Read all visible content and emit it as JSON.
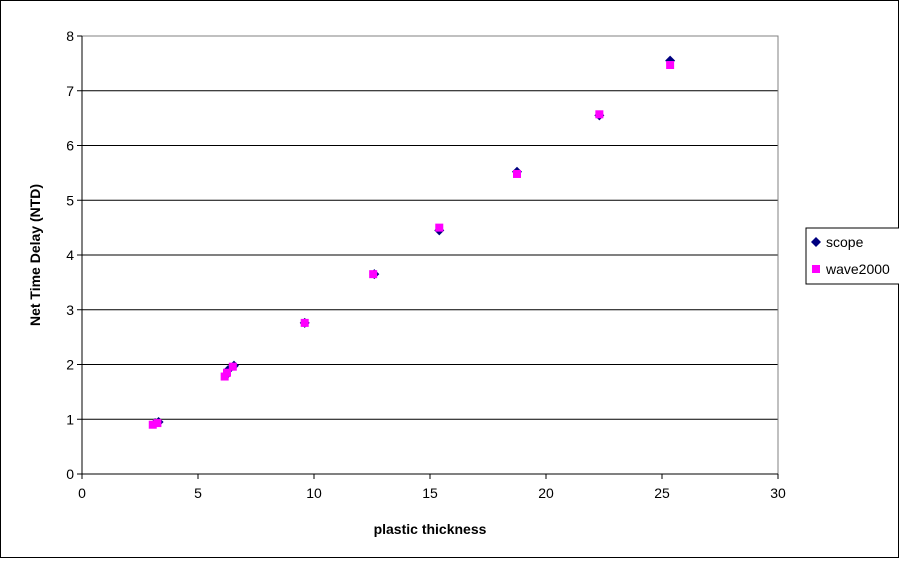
{
  "chart_data": {
    "type": "scatter",
    "title": "",
    "xlabel": "plastic thickness",
    "ylabel": "Net Time Delay (NTD)",
    "xlim": [
      0,
      30
    ],
    "ylim": [
      0,
      8
    ],
    "x_ticks": [
      "0",
      "5",
      "10",
      "15",
      "20",
      "25",
      "30"
    ],
    "y_ticks": [
      "0",
      "1",
      "2",
      "3",
      "4",
      "5",
      "6",
      "7",
      "8"
    ],
    "grid": "horizontal major gridlines",
    "legend_position": "right",
    "series": [
      {
        "name": "scope",
        "marker": "diamond",
        "color": "#000080",
        "points": [
          {
            "x": 3.15,
            "y": 0.93
          },
          {
            "x": 3.3,
            "y": 0.95
          },
          {
            "x": 6.2,
            "y": 1.8
          },
          {
            "x": 6.3,
            "y": 1.9
          },
          {
            "x": 6.55,
            "y": 1.98
          },
          {
            "x": 9.6,
            "y": 2.76
          },
          {
            "x": 12.6,
            "y": 3.65
          },
          {
            "x": 15.4,
            "y": 4.45
          },
          {
            "x": 18.75,
            "y": 5.52
          },
          {
            "x": 22.3,
            "y": 6.55
          },
          {
            "x": 25.35,
            "y": 7.55
          }
        ]
      },
      {
        "name": "wave2000",
        "marker": "square",
        "color": "#FF00FF",
        "points": [
          {
            "x": 3.05,
            "y": 0.9
          },
          {
            "x": 3.25,
            "y": 0.93
          },
          {
            "x": 6.15,
            "y": 1.78
          },
          {
            "x": 6.25,
            "y": 1.85
          },
          {
            "x": 6.5,
            "y": 1.96
          },
          {
            "x": 9.6,
            "y": 2.76
          },
          {
            "x": 12.55,
            "y": 3.65
          },
          {
            "x": 15.4,
            "y": 4.5
          },
          {
            "x": 18.75,
            "y": 5.48
          },
          {
            "x": 22.3,
            "y": 6.57
          },
          {
            "x": 25.35,
            "y": 7.47
          }
        ]
      }
    ]
  }
}
